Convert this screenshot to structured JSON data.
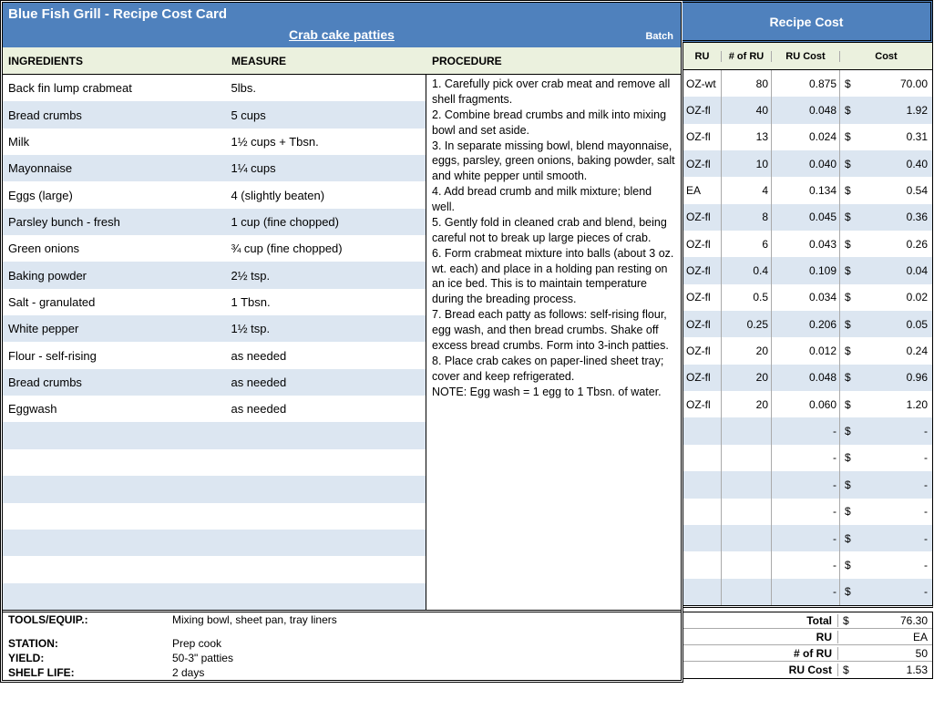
{
  "header": {
    "title": "Blue Fish Grill - Recipe Cost Card",
    "recipe": "Crab cake patties",
    "batch": "Batch",
    "recipe_cost": "Recipe Cost"
  },
  "columns": {
    "ingredients": "INGREDIENTS",
    "measure": "MEASURE",
    "procedure": "PROCEDURE",
    "ru": "RU",
    "nru": "# of RU",
    "rucost": "RU Cost",
    "cost": "Cost"
  },
  "procedure": "1. Carefully pick over crab meat and remove all shell fragments.\n2. Combine bread crumbs and milk into mixing bowl and set aside.\n3. In separate missing bowl, blend mayonnaise, eggs, parsley, green onions, baking powder, salt and white pepper until smooth.\n4. Add bread crumb and milk mixture; blend well.\n5. Gently fold in cleaned crab and blend, being careful not to break up large pieces of crab.\n6. Form crabmeat mixture into balls (about 3 oz. wt. each) and place in a holding pan resting on an ice bed. This is to maintain temperature during the breading process.\n7. Bread each patty as follows: self-rising flour, egg wash, and then bread crumbs. Shake off excess bread crumbs. Form into 3-inch patties.\n8. Place crab cakes on paper-lined sheet tray; cover and keep refrigerated.\nNOTE: Egg wash = 1 egg to 1 Tbsn. of water.",
  "rows": [
    {
      "ing": "Back fin lump crabmeat",
      "meas": "5lbs.",
      "ru": "OZ-wt",
      "nru": "80",
      "rucost": "0.875",
      "cost": "70.00"
    },
    {
      "ing": "Bread crumbs",
      "meas": "5 cups",
      "ru": "OZ-fl",
      "nru": "40",
      "rucost": "0.048",
      "cost": "1.92"
    },
    {
      "ing": "Milk",
      "meas": "1½ cups + Tbsn.",
      "ru": "OZ-fl",
      "nru": "13",
      "rucost": "0.024",
      "cost": "0.31"
    },
    {
      "ing": "Mayonnaise",
      "meas": "1¼ cups",
      "ru": "OZ-fl",
      "nru": "10",
      "rucost": "0.040",
      "cost": "0.40"
    },
    {
      "ing": "Eggs (large)",
      "meas": "4 (slightly beaten)",
      "ru": "EA",
      "nru": "4",
      "rucost": "0.134",
      "cost": "0.54"
    },
    {
      "ing": "Parsley bunch - fresh",
      "meas": "1 cup (fine chopped)",
      "ru": "OZ-fl",
      "nru": "8",
      "rucost": "0.045",
      "cost": "0.36"
    },
    {
      "ing": "Green onions",
      "meas": "¾ cup (fine chopped)",
      "ru": "OZ-fl",
      "nru": "6",
      "rucost": "0.043",
      "cost": "0.26"
    },
    {
      "ing": "Baking powder",
      "meas": "2½ tsp.",
      "ru": "OZ-fl",
      "nru": "0.4",
      "rucost": "0.109",
      "cost": "0.04"
    },
    {
      "ing": "Salt - granulated",
      "meas": "1 Tbsn.",
      "ru": "OZ-fl",
      "nru": "0.5",
      "rucost": "0.034",
      "cost": "0.02"
    },
    {
      "ing": "White pepper",
      "meas": "1½ tsp.",
      "ru": "OZ-fl",
      "nru": "0.25",
      "rucost": "0.206",
      "cost": "0.05"
    },
    {
      "ing": "Flour - self-rising",
      "meas": "as needed",
      "ru": "OZ-fl",
      "nru": "20",
      "rucost": "0.012",
      "cost": "0.24"
    },
    {
      "ing": "Bread crumbs",
      "meas": "as needed",
      "ru": "OZ-fl",
      "nru": "20",
      "rucost": "0.048",
      "cost": "0.96"
    },
    {
      "ing": "Eggwash",
      "meas": "as needed",
      "ru": "OZ-fl",
      "nru": "20",
      "rucost": "0.060",
      "cost": "1.20"
    },
    {
      "ing": "",
      "meas": "",
      "ru": "",
      "nru": "",
      "rucost": "-",
      "cost": "-"
    },
    {
      "ing": "",
      "meas": "",
      "ru": "",
      "nru": "",
      "rucost": "-",
      "cost": "-"
    },
    {
      "ing": "",
      "meas": "",
      "ru": "",
      "nru": "",
      "rucost": "-",
      "cost": "-"
    },
    {
      "ing": "",
      "meas": "",
      "ru": "",
      "nru": "",
      "rucost": "-",
      "cost": "-"
    },
    {
      "ing": "",
      "meas": "",
      "ru": "",
      "nru": "",
      "rucost": "-",
      "cost": "-"
    },
    {
      "ing": "",
      "meas": "",
      "ru": "",
      "nru": "",
      "rucost": "-",
      "cost": "-"
    },
    {
      "ing": "",
      "meas": "",
      "ru": "",
      "nru": "",
      "rucost": "-",
      "cost": "-"
    }
  ],
  "footer": {
    "tools_label": "TOOLS/EQUIP.:",
    "tools": "Mixing bowl, sheet pan, tray liners",
    "station_label": "STATION:",
    "station": "Prep cook",
    "yield_label": "YIELD:",
    "yield": "50-3\" patties",
    "shelf_label": "SHELF LIFE:",
    "shelf": "2 days"
  },
  "summary": {
    "total_label": "Total",
    "total": "76.30",
    "ru_label": "RU",
    "ru": "EA",
    "nru_label": "# of RU",
    "nru": "50",
    "rucost_label": "RU Cost",
    "rucost": "1.53"
  }
}
